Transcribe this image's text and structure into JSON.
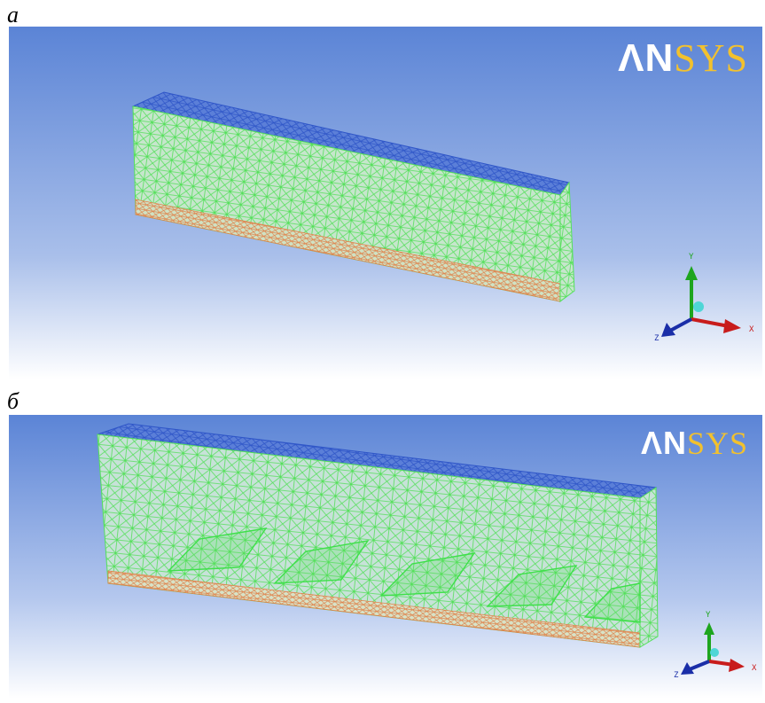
{
  "panels": [
    {
      "label": "а",
      "logo_left": "ΛN",
      "logo_right": "SYS",
      "axes": {
        "x": "X",
        "y": "Y",
        "z": "Z"
      }
    },
    {
      "label": "б",
      "logo_left": "ΛN",
      "logo_right": "SYS",
      "axes": {
        "x": "X",
        "y": "Y",
        "z": "Z"
      }
    }
  ],
  "colors": {
    "background_top": "#5b84d6",
    "background_bottom": "#ffffff",
    "mesh_side": "#54e05a",
    "mesh_top": "#2f56c8",
    "mesh_bottom": "#e0834c",
    "axis_x": "#c81c1c",
    "axis_y": "#1ea51e",
    "axis_z": "#1a2ea8",
    "axis_origin": "#4fd6d6",
    "logo_accent": "#f2c12e"
  }
}
